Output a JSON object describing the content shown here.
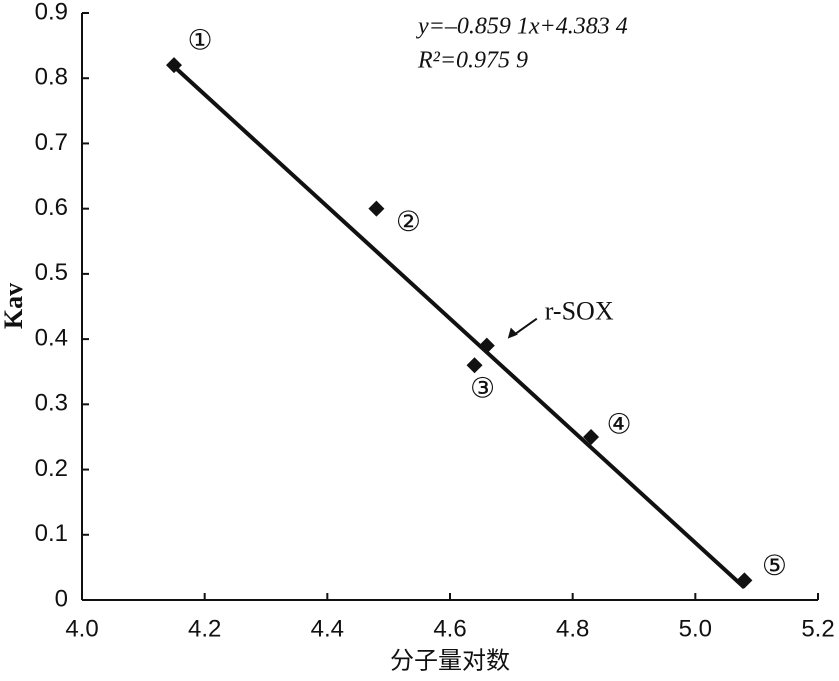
{
  "chart_data": {
    "type": "scatter",
    "xlabel": "分子量对数",
    "ylabel": "Kav",
    "xlim": [
      4.0,
      5.2
    ],
    "ylim": [
      0,
      0.9
    ],
    "xticks": [
      {
        "value": 4.0,
        "label": "4.0"
      },
      4.2,
      4.4,
      4.6,
      4.8,
      {
        "value": 5.0,
        "label": "5.0"
      },
      5.2
    ],
    "yticks": [
      0,
      0.1,
      0.2,
      0.3,
      0.4,
      0.5,
      0.6,
      0.7,
      0.8,
      0.9
    ],
    "grid": false,
    "series": [
      {
        "type": "scatter",
        "color": "#111111",
        "x": [
          4.15,
          4.48,
          4.64,
          4.66,
          4.83,
          5.08
        ],
        "values": [
          0.82,
          0.6,
          0.36,
          0.39,
          0.25,
          0.03
        ],
        "point_labels": [
          "①",
          "②",
          "③",
          "r-SOX",
          "④",
          "⑤"
        ]
      },
      {
        "type": "line",
        "color": "#111111",
        "x": [
          4.15,
          5.08
        ],
        "values": [
          0.818,
          0.019
        ]
      }
    ],
    "annotations": [
      "y=–0.859 1x+4.383 4",
      "R²=0.975 9"
    ]
  }
}
